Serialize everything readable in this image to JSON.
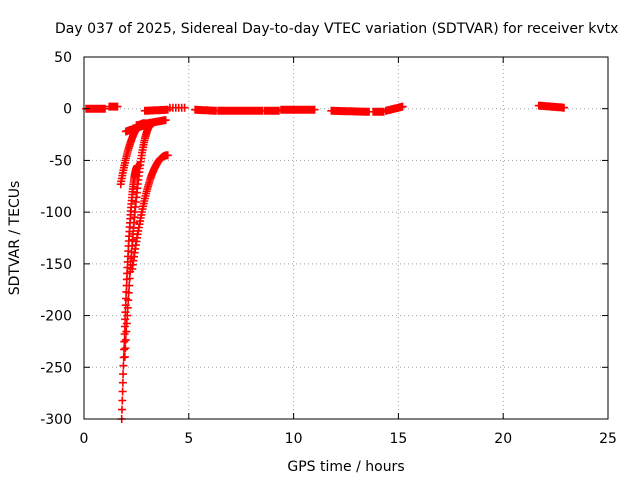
{
  "chart_data": {
    "type": "scatter",
    "title": "Day 037 of 2025, Sidereal Day-to-day VTEC variation (SDTVAR) for receiver kvtx",
    "xlabel": "GPS time / hours",
    "ylabel": "SDTVAR / TECUs",
    "xlim": [
      0,
      25
    ],
    "ylim": [
      -300,
      50
    ],
    "xticks": [
      0,
      5,
      10,
      15,
      20,
      25
    ],
    "yticks": [
      -300,
      -250,
      -200,
      -150,
      -100,
      -50,
      0,
      50
    ],
    "grid": true,
    "marker": "plus",
    "color": "#ff0000",
    "series": [
      {
        "segments": [
          {
            "x0": 0.1,
            "x1": 1.0,
            "y0": 0.0,
            "y1": 0.0,
            "n": 24
          },
          {
            "x0": 1.2,
            "x1": 1.6,
            "y0": 2.0,
            "y1": 2.0,
            "n": 10
          },
          {
            "x0": 2.9,
            "x1": 4.0,
            "y0": -2.0,
            "y1": -1.0,
            "n": 26
          },
          {
            "x0": 4.1,
            "x1": 4.8,
            "y0": 1.0,
            "y1": 1.0,
            "n": 6
          },
          {
            "x0": 5.3,
            "x1": 6.3,
            "y0": -1.0,
            "y1": -2.0,
            "n": 20
          },
          {
            "x0": 6.4,
            "x1": 8.5,
            "y0": -2.0,
            "y1": -2.0,
            "n": 44
          },
          {
            "x0": 8.6,
            "x1": 9.3,
            "y0": -2.0,
            "y1": -2.0,
            "n": 14
          },
          {
            "x0": 9.4,
            "x1": 11.0,
            "y0": -1.0,
            "y1": -1.0,
            "n": 34
          },
          {
            "x0": 11.8,
            "x1": 13.6,
            "y0": -2.0,
            "y1": -3.0,
            "n": 38
          },
          {
            "x0": 13.8,
            "x1": 14.3,
            "y0": -3.0,
            "y1": -3.0,
            "n": 10
          },
          {
            "x0": 14.4,
            "x1": 15.2,
            "y0": -2.0,
            "y1": 2.0,
            "n": 20
          },
          {
            "x0": 21.7,
            "x1": 22.9,
            "y0": 3.0,
            "y1": 1.0,
            "n": 26
          },
          {
            "x0": 2.0,
            "x1": 3.2,
            "y0": -22.0,
            "y1": -14.0,
            "n": 30
          },
          {
            "x0": 2.5,
            "x1": 3.9,
            "y0": -16.0,
            "y1": -11.0,
            "n": 30
          }
        ],
        "curves": [
          {
            "x0": 1.75,
            "x1": 2.9,
            "y0": -73.0,
            "y1": -14.0,
            "n": 46
          },
          {
            "x0": 1.8,
            "x1": 2.6,
            "y0": -300.0,
            "y1": -55.0,
            "n": 60
          },
          {
            "x0": 1.95,
            "x1": 3.3,
            "y0": -240.0,
            "y1": -14.0,
            "n": 60
          },
          {
            "x0": 2.3,
            "x1": 4.0,
            "y0": -155.0,
            "y1": -45.0,
            "n": 60
          }
        ]
      }
    ]
  }
}
